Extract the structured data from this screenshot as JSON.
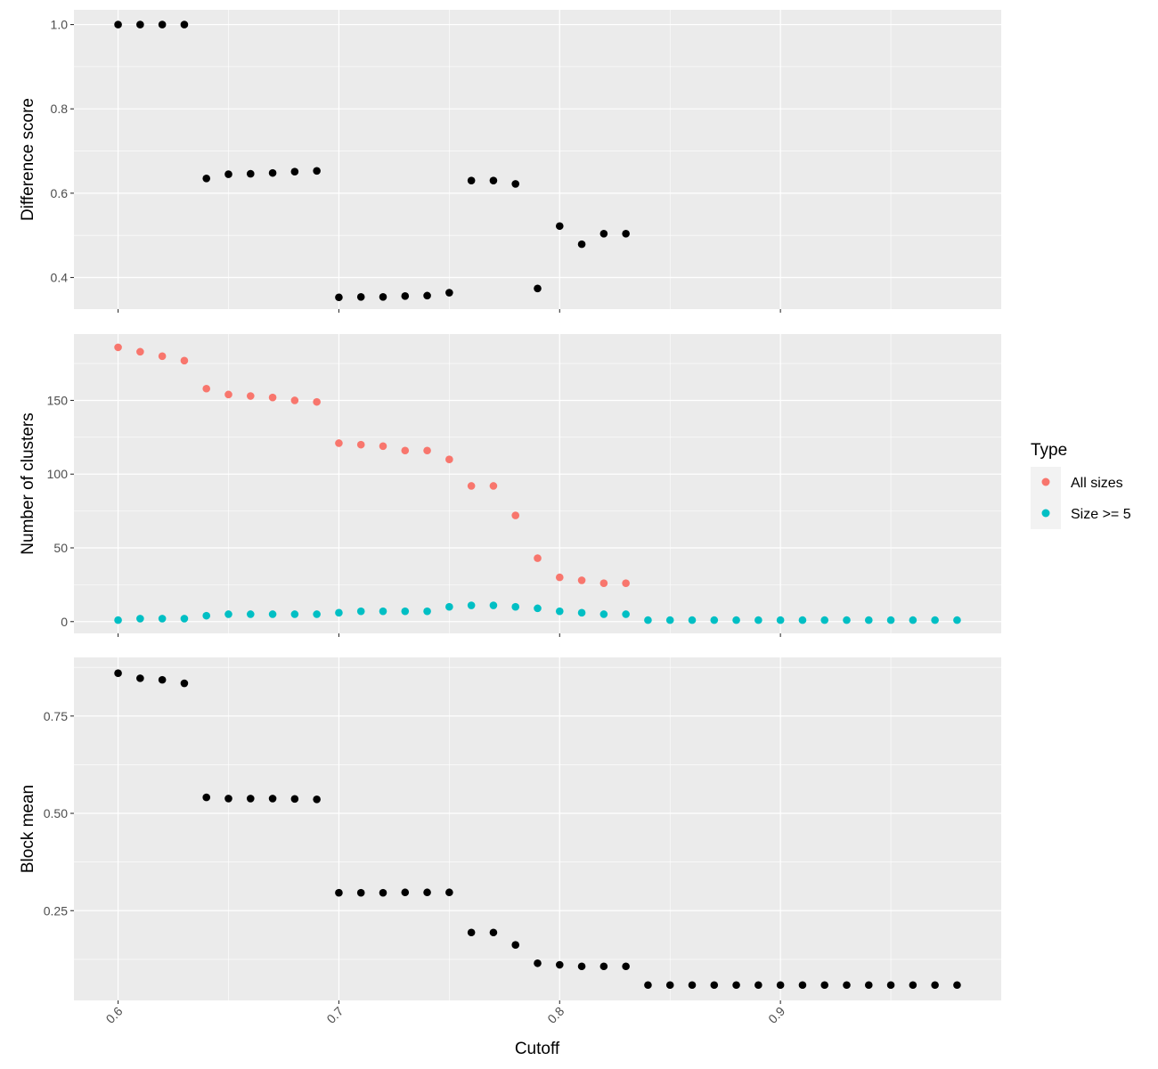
{
  "chart_data": {
    "type": "scatter",
    "x": [
      0.6,
      0.61,
      0.62,
      0.63,
      0.64,
      0.65,
      0.66,
      0.67,
      0.68,
      0.69,
      0.7,
      0.71,
      0.72,
      0.73,
      0.74,
      0.75,
      0.76,
      0.77,
      0.78,
      0.79,
      0.8,
      0.81,
      0.82,
      0.83,
      0.84,
      0.85,
      0.86,
      0.87,
      0.88,
      0.89,
      0.9,
      0.91,
      0.92,
      0.93,
      0.94,
      0.95,
      0.96,
      0.97,
      0.98
    ],
    "xlabel": "Cutoff",
    "xlim": [
      0.58,
      1.0
    ],
    "xticks": [
      0.6,
      0.7,
      0.8,
      0.9
    ],
    "xtick_labels": [
      "0.6",
      "0.7",
      "0.8",
      "0.9"
    ],
    "xtick_rotation_deg": -45,
    "background_color": "#ebebeb",
    "grid": true,
    "grid_color": "#ffffff",
    "legend_placement": "right",
    "legend": {
      "title": "Type",
      "entries": [
        {
          "label": "All sizes",
          "color": "#f8766d"
        },
        {
          "label": "Size >= 5",
          "color": "#00bfc4"
        }
      ]
    },
    "panels": [
      {
        "ylabel": "Difference score",
        "ylim": [
          0.325,
          1.035
        ],
        "yticks": [
          0.4,
          0.6,
          0.8,
          1.0
        ],
        "ytick_labels": [
          "0.4",
          "0.6",
          "0.8",
          "1.0"
        ],
        "series": [
          {
            "color": "#000000",
            "values": [
              1.0,
              1.0,
              1.0,
              1.0,
              0.635,
              0.645,
              0.646,
              0.648,
              0.651,
              0.653,
              0.353,
              0.354,
              0.354,
              0.356,
              0.357,
              0.364,
              0.63,
              0.63,
              0.622,
              0.374,
              0.522,
              0.479,
              0.504,
              0.504
            ]
          }
        ]
      },
      {
        "ylabel": "Number of clusters",
        "ylim": [
          -8,
          195
        ],
        "yticks": [
          0,
          50,
          100,
          150
        ],
        "ytick_labels": [
          "0",
          "50",
          "100",
          "150"
        ],
        "series": [
          {
            "name": "All sizes",
            "color": "#f8766d",
            "values": [
              186,
              183,
              180,
              177,
              158,
              154,
              153,
              152,
              150,
              149,
              121,
              120,
              119,
              116,
              116,
              110,
              92,
              92,
              72,
              43,
              30,
              28,
              26,
              26
            ]
          },
          {
            "name": "Size >= 5",
            "color": "#00bfc4",
            "values": [
              1,
              2,
              2,
              2,
              4,
              5,
              5,
              5,
              5,
              5,
              6,
              7,
              7,
              7,
              7,
              10,
              11,
              11,
              10,
              9,
              7,
              6,
              5,
              5,
              1,
              1,
              1,
              1,
              1,
              1,
              1,
              1,
              1,
              1,
              1,
              1,
              1,
              1,
              1
            ]
          }
        ]
      },
      {
        "ylabel": "Block mean",
        "ylim": [
          0.0195,
          0.9005
        ],
        "yticks": [
          0.25,
          0.5,
          0.75
        ],
        "ytick_labels": [
          "0.25",
          "0.50",
          "0.75"
        ],
        "series": [
          {
            "color": "#000000",
            "values": [
              0.86,
              0.847,
              0.843,
              0.834,
              0.541,
              0.538,
              0.538,
              0.538,
              0.537,
              0.536,
              0.296,
              0.296,
              0.296,
              0.297,
              0.297,
              0.297,
              0.194,
              0.194,
              0.162,
              0.115,
              0.111,
              0.107,
              0.107,
              0.107,
              0.059,
              0.059,
              0.059,
              0.059,
              0.059,
              0.059,
              0.059,
              0.059,
              0.059,
              0.059,
              0.059,
              0.059,
              0.059,
              0.059,
              0.059
            ]
          }
        ]
      }
    ]
  }
}
